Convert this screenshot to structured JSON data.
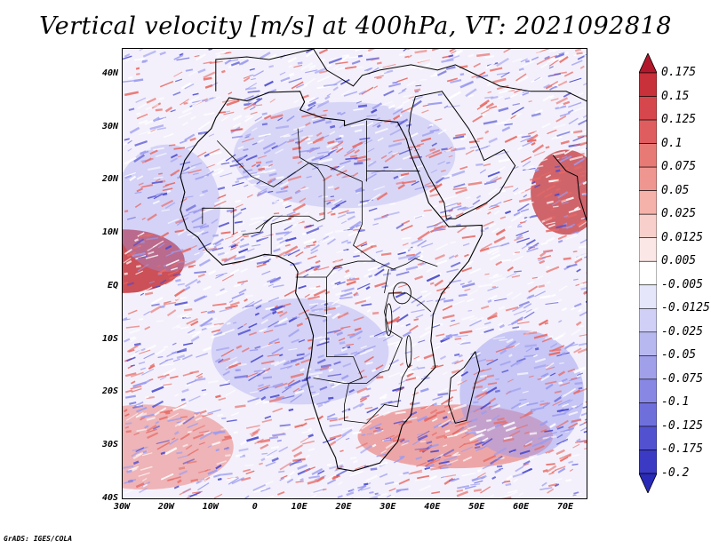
{
  "title": "Vertical velocity [m/s] at 400hPa, VT: 2021092818",
  "credit": "GrADS: IGES/COLA",
  "lat_ticks": [
    "40N",
    "30N",
    "20N",
    "10N",
    "EQ",
    "10S",
    "20S",
    "30S",
    "40S"
  ],
  "lon_ticks": [
    "30W",
    "20W",
    "10W",
    "0",
    "10E",
    "20E",
    "30E",
    "40E",
    "50E",
    "60E",
    "70E"
  ],
  "colorbar": {
    "labels": [
      "0.175",
      "0.15",
      "0.125",
      "0.1",
      "0.075",
      "0.05",
      "0.025",
      "0.0125",
      "0.005",
      "-0.005",
      "-0.0125",
      "-0.025",
      "-0.05",
      "-0.075",
      "-0.1",
      "-0.125",
      "-0.175",
      "-0.2"
    ],
    "colors": [
      "#b2182b",
      "#c8303a",
      "#d6474d",
      "#e05d5f",
      "#e87a76",
      "#ef9690",
      "#f4b2ab",
      "#f8cfca",
      "#fbe8e6",
      "#ffffff",
      "#e6e6fa",
      "#d0d0f6",
      "#b8b8f0",
      "#a0a0ea",
      "#8888e4",
      "#6f6fdc",
      "#5252d0",
      "#3a3ac4",
      "#2a2ab8"
    ]
  },
  "map": {
    "region": "Africa",
    "lon_range_deg": [
      -30,
      75
    ],
    "lat_range_deg": [
      -40,
      45
    ],
    "palette": {
      "ocean_base": "#f3f0fb",
      "positive": "#e86a64",
      "strong_positive": "#c0282e",
      "negative": "#9c9cf0",
      "strong_negative": "#4a4ad0",
      "coastline": "#000000"
    }
  }
}
